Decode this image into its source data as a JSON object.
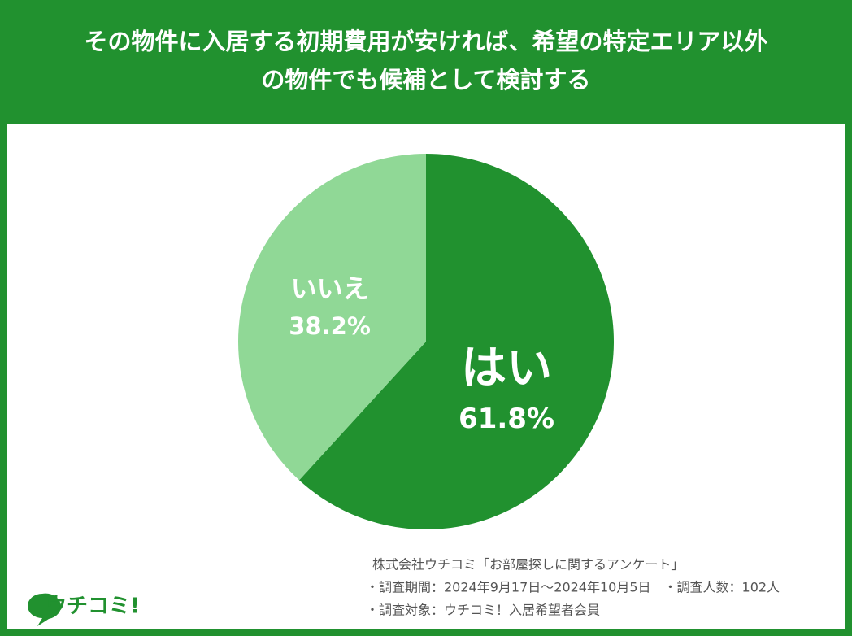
{
  "chart_data": {
    "type": "pie",
    "title": "その物件に入居する初期費用が安ければ、希望の特定エリア以外\nの物件でも候補として検討する",
    "categories": [
      "はい",
      "いいえ"
    ],
    "values": [
      61.8,
      38.2
    ],
    "value_labels": [
      "61.8%",
      "38.2%"
    ],
    "colors": [
      "#21912f",
      "#90d896"
    ],
    "notes": [
      "株式会社ウチコミ「お部屋探しに関するアンケート」",
      "・調査期間：2024年9月17日〜2024年10月5日　・調査人数：102人",
      "・調査対象：ウチコミ！入居希望者会員"
    ],
    "logo": "ウチコミ!"
  }
}
